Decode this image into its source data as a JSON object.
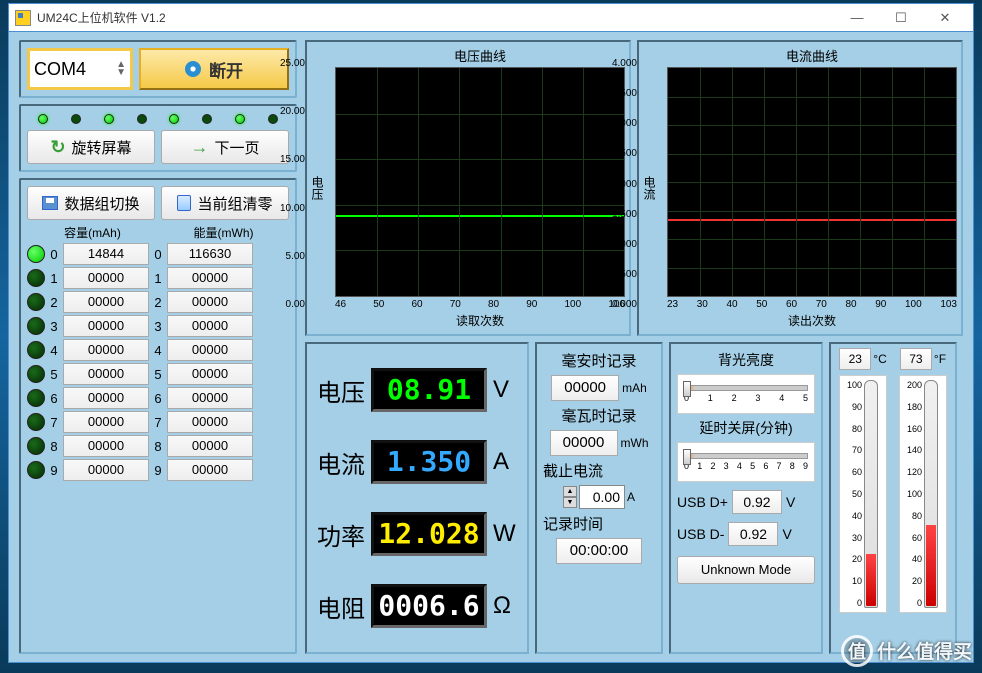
{
  "window": {
    "title": "UM24C上位机软件 V1.2"
  },
  "conn": {
    "port": "COM4",
    "disconnect": "断开"
  },
  "nav": {
    "rotate": "旋转屏幕",
    "next": "下一页"
  },
  "datagroup": {
    "switch": "数据组切换",
    "clear": "当前组清零"
  },
  "headers": {
    "capacity": "容量(mAh)",
    "energy": "能量(mWh)"
  },
  "groups": [
    {
      "idx": "0",
      "cap": "14844",
      "eng": "116630",
      "active": true
    },
    {
      "idx": "1",
      "cap": "00000",
      "eng": "00000",
      "active": false
    },
    {
      "idx": "2",
      "cap": "00000",
      "eng": "00000",
      "active": false
    },
    {
      "idx": "3",
      "cap": "00000",
      "eng": "00000",
      "active": false
    },
    {
      "idx": "4",
      "cap": "00000",
      "eng": "00000",
      "active": false
    },
    {
      "idx": "5",
      "cap": "00000",
      "eng": "00000",
      "active": false
    },
    {
      "idx": "6",
      "cap": "00000",
      "eng": "00000",
      "active": false
    },
    {
      "idx": "7",
      "cap": "00000",
      "eng": "00000",
      "active": false
    },
    {
      "idx": "8",
      "cap": "00000",
      "eng": "00000",
      "active": false
    },
    {
      "idx": "9",
      "cap": "00000",
      "eng": "00000",
      "active": false
    }
  ],
  "chartV": {
    "title": "电压曲线",
    "ylabel": "电压",
    "xlabel": "读取次数",
    "ylim": [
      0,
      25
    ],
    "yticks": [
      "25.00",
      "20.00",
      "15.00",
      "10.00",
      "5.00",
      "0.00"
    ],
    "xlim": [
      46,
      106
    ],
    "xticks": [
      "46",
      "50",
      "60",
      "70",
      "80",
      "90",
      "100",
      "106"
    ],
    "trace_color": "#00ff00",
    "trace_y": 8.91,
    "bg": "#000000",
    "grid": "#1a3a1a"
  },
  "chartA": {
    "title": "电流曲线",
    "ylabel": "电流",
    "xlabel": "读出次数",
    "ylim": [
      0,
      4
    ],
    "yticks": [
      "4.000",
      "3.500",
      "3.000",
      "2.500",
      "2.000",
      "1.500",
      "1.000",
      "0.500",
      "0.000"
    ],
    "xlim": [
      23,
      103
    ],
    "xticks": [
      "23",
      "30",
      "40",
      "50",
      "60",
      "70",
      "80",
      "90",
      "100",
      "103"
    ],
    "trace_color": "#ee3333",
    "trace_y": 1.35,
    "bg": "#000000",
    "grid": "#1a3a1a"
  },
  "meas": {
    "voltage": {
      "label": "电压",
      "value": "08.91",
      "unit": "V"
    },
    "current": {
      "label": "电流",
      "value": "1.350",
      "unit": "A"
    },
    "power": {
      "label": "功率",
      "value": "12.028",
      "unit": "W"
    },
    "resist": {
      "label": "电阻",
      "value": "0006.6",
      "unit": "Ω"
    }
  },
  "rec": {
    "mah": {
      "label": "毫安时记录",
      "value": "00000",
      "unit": "mAh"
    },
    "mwh": {
      "label": "毫瓦时记录",
      "value": "00000",
      "unit": "mWh"
    },
    "cutoff": {
      "label": "截止电流",
      "value": "0.00",
      "unit": "A"
    },
    "time": {
      "label": "记录时间",
      "value": "00:00:00"
    }
  },
  "sliders": {
    "backlight": {
      "label": "背光亮度",
      "ticks": [
        "0",
        "1",
        "2",
        "3",
        "4",
        "5"
      ],
      "value": 0
    },
    "screenoff": {
      "label": "延时关屏(分钟)",
      "ticks": [
        "0",
        "1",
        "2",
        "3",
        "4",
        "5",
        "6",
        "7",
        "8",
        "9"
      ],
      "value": 0
    }
  },
  "usb": {
    "dp": {
      "label": "USB D+",
      "value": "0.92",
      "unit": "V"
    },
    "dm": {
      "label": "USB D-",
      "value": "0.92",
      "unit": "V"
    },
    "mode": "Unknown Mode"
  },
  "temp": {
    "c": {
      "value": "23",
      "unit": "°C",
      "scale": [
        "100",
        "90",
        "80",
        "70",
        "60",
        "50",
        "40",
        "30",
        "20",
        "10",
        "0"
      ],
      "fill_pct": 23
    },
    "f": {
      "value": "73",
      "unit": "°F",
      "scale": [
        "200",
        "180",
        "160",
        "140",
        "120",
        "100",
        "80",
        "60",
        "40",
        "20",
        "0"
      ],
      "fill_pct": 36
    }
  },
  "watermark": "什么值得买"
}
